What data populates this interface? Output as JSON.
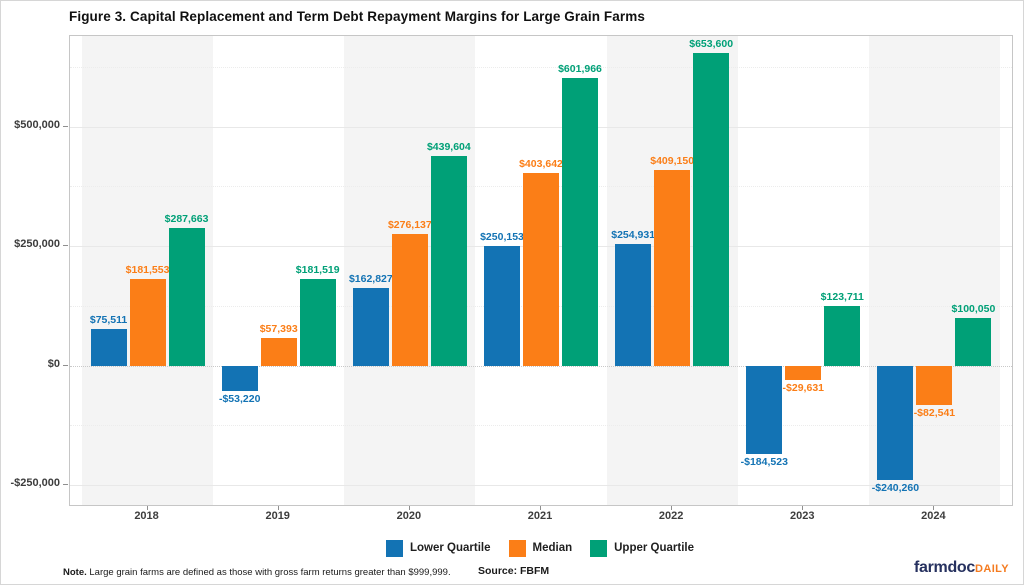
{
  "chart_data": {
    "type": "bar",
    "title": "Figure 3. Capital Replacement and Term Debt Repayment Margins for Large Grain Farms",
    "categories": [
      "2018",
      "2019",
      "2020",
      "2021",
      "2022",
      "2023",
      "2024"
    ],
    "series": [
      {
        "name": "Lower Quartile",
        "color": "#1373b4",
        "values": [
          75511,
          -53220,
          162827,
          250153,
          254931,
          -184523,
          -240260
        ]
      },
      {
        "name": "Median",
        "color": "#fb7e17",
        "values": [
          181553,
          57393,
          276137,
          403642,
          409150,
          -29631,
          -82541
        ]
      },
      {
        "name": "Upper Quartile",
        "color": "#00a077",
        "values": [
          287663,
          181519,
          439604,
          601966,
          653600,
          123711,
          100050
        ]
      }
    ],
    "y_ticks": [
      {
        "value": 500000,
        "label": "$500,000"
      },
      {
        "value": 250000,
        "label": "$250,000"
      },
      {
        "value": 0,
        "label": "$0"
      },
      {
        "value": -250000,
        "label": "-$250,000"
      }
    ],
    "minor_gridlines": [
      625000,
      375000,
      125000,
      -125000
    ],
    "ylim": [
      -292000,
      690000
    ],
    "xlabel": "",
    "ylabel": "",
    "grid": true,
    "legend_position": "bottom",
    "bar_label_format": "signed_currency",
    "stripe_color": "#f4f4f4"
  },
  "footer": {
    "note_bold": "Note.",
    "note_text": " Large grain farms are defined as those with gross farm returns greater than $999,999.",
    "source": "Source: FBFM",
    "logo": {
      "farmdoc": "farmdoc",
      "daily": "DAILY"
    }
  }
}
